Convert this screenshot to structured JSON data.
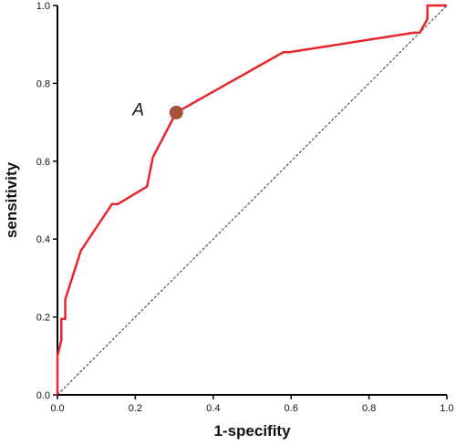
{
  "chart_data": {
    "type": "line",
    "title": "",
    "xlabel": "1-specifity",
    "ylabel": "sensitivity",
    "xlim": [
      0,
      1
    ],
    "ylim": [
      0,
      1
    ],
    "x_ticks": [
      "0.0",
      "0.2",
      "0.4",
      "0.6",
      "0.8",
      "1.0"
    ],
    "y_ticks": [
      "0.0",
      "0.2",
      "0.4",
      "0.6",
      "0.8",
      "1.0"
    ],
    "grid": false,
    "series": [
      {
        "color": "#e8262b",
        "points": [
          [
            0.0,
            0.0
          ],
          [
            0.0,
            0.1
          ],
          [
            0.01,
            0.14
          ],
          [
            0.01,
            0.195
          ],
          [
            0.02,
            0.195
          ],
          [
            0.02,
            0.245
          ],
          [
            0.06,
            0.37
          ],
          [
            0.14,
            0.49
          ],
          [
            0.155,
            0.49
          ],
          [
            0.23,
            0.535
          ],
          [
            0.245,
            0.61
          ],
          [
            0.305,
            0.725
          ],
          [
            0.58,
            0.88
          ],
          [
            0.595,
            0.88
          ],
          [
            0.915,
            0.93
          ],
          [
            0.93,
            0.93
          ],
          [
            0.95,
            0.965
          ],
          [
            0.95,
            1.0
          ],
          [
            1.0,
            1.0
          ]
        ]
      }
    ],
    "reference_line": {
      "points": [
        [
          0,
          0
        ],
        [
          1,
          1
        ]
      ],
      "style": "dashed",
      "color": "#333333"
    },
    "annotations": [
      {
        "text": "A",
        "x": 0.305,
        "y": 0.725,
        "marker_color": "#a4533a"
      }
    ]
  }
}
